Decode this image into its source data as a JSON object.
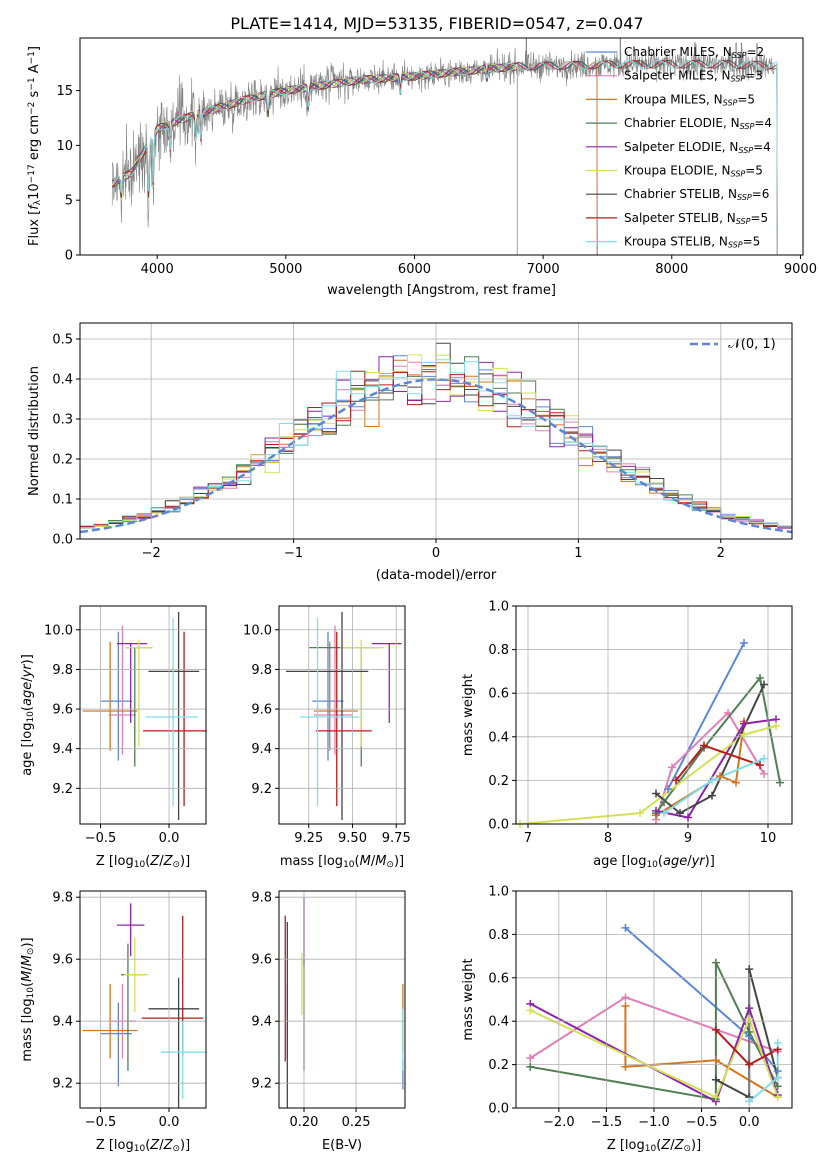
{
  "figure_title": "PLATE=1414, MJD=53135, FIBERID=0547, z=0.047",
  "colors": {
    "Chabrier MILES": "#5b86d6",
    "Salpeter MILES": "#e27db8",
    "Kroupa MILES": "#d6761c",
    "Chabrier ELODIE": "#4f7f52",
    "Salpeter ELODIE": "#8e24aa",
    "Kroupa ELODIE": "#d4e157",
    "Chabrier STELIB": "#444444",
    "Salpeter STELIB": "#b71c1c",
    "Kroupa STELIB": "#80deea",
    "data": "#808080",
    "normal": "#5b86d6"
  },
  "chart_data": [
    {
      "id": "spectrum",
      "type": "line",
      "xlabel": "wavelength [Angstrom, rest frame]",
      "ylabel": "Flux [f_λ10^-17 erg cm^-2 s^-1 A^-1]",
      "xlim": [
        3400,
        9020
      ],
      "ylim": [
        0,
        19.8
      ],
      "xticks": [
        4000,
        5000,
        6000,
        7000,
        8000,
        9000
      ],
      "yticks": [
        0,
        5,
        10,
        15
      ],
      "grid": false,
      "legend_position": "top-right",
      "legend": [
        {
          "name": "Chabrier MILES",
          "nssp": "2"
        },
        {
          "name": "Salpeter MILES",
          "nssp": "3"
        },
        {
          "name": "Kroupa MILES",
          "nssp": "5"
        },
        {
          "name": "Chabrier ELODIE",
          "nssp": "4"
        },
        {
          "name": "Salpeter ELODIE",
          "nssp": "4"
        },
        {
          "name": "Kroupa ELODIE",
          "nssp": "5"
        },
        {
          "name": "Chabrier STELIB",
          "nssp": "6"
        },
        {
          "name": "Salpeter STELIB",
          "nssp": "5"
        },
        {
          "name": "Kroupa STELIB",
          "nssp": "5"
        }
      ],
      "continuum": {
        "x": [
          3650,
          3800,
          3900,
          4000,
          4100,
          4300,
          4500,
          4700,
          5000,
          5300,
          5600,
          6000,
          6400,
          6800,
          7200,
          7600,
          8000,
          8400,
          8800
        ],
        "y": [
          6.5,
          7.5,
          9.5,
          11.5,
          12.0,
          12.8,
          13.5,
          14.2,
          15.0,
          15.5,
          16.0,
          16.3,
          16.8,
          17.2,
          17.3,
          17.4,
          17.4,
          17.4,
          17.3
        ]
      },
      "model_extent": {
        "MILES": [
          3650,
          7420
        ],
        "ELODIE": [
          3650,
          6800
        ],
        "STELIB": [
          3650,
          8820
        ]
      },
      "absorption_lines": [
        {
          "x": 3720,
          "depth": 2.0
        },
        {
          "x": 3934,
          "depth": 5.5
        },
        {
          "x": 3968,
          "depth": 5.0
        },
        {
          "x": 4101,
          "depth": 2.5
        },
        {
          "x": 4300,
          "depth": 2.5
        },
        {
          "x": 4340,
          "depth": 2.5
        },
        {
          "x": 4861,
          "depth": 2.0
        },
        {
          "x": 5175,
          "depth": 2.0
        },
        {
          "x": 5890,
          "depth": 1.5
        },
        {
          "x": 6563,
          "depth": 1.0
        }
      ],
      "telluric_regions": [
        {
          "x": 6870,
          "height": 22
        },
        {
          "x": 7600,
          "height": 3
        },
        {
          "x": 8180,
          "height": 2
        },
        {
          "x": 8500,
          "height": 2
        },
        {
          "x": 8542,
          "height": 2
        },
        {
          "x": 8662,
          "height": 2
        }
      ]
    },
    {
      "id": "residuals",
      "type": "step-histogram",
      "xlabel": "(data-model)/error",
      "ylabel": "Normed distribution",
      "xlim": [
        -2.5,
        2.5
      ],
      "ylim": [
        0,
        0.54
      ],
      "xticks": [
        -2,
        -1,
        0,
        1,
        2
      ],
      "yticks": [
        0.0,
        0.1,
        0.2,
        0.3,
        0.4,
        0.5
      ],
      "grid": true,
      "legend_position": "top-right",
      "normal_label": "N(0, 1)",
      "bin_width": 0.1,
      "bin_start": -2.5
    },
    {
      "id": "age_vs_Z",
      "type": "errorbar",
      "xlabel": "Z [log10(Z/Z_sun)]",
      "ylabel": "age  [log10(age/yr)]",
      "xlim": [
        -0.65,
        0.27
      ],
      "ylim": [
        9.02,
        10.12
      ],
      "xticks": [
        -0.5,
        0.0
      ],
      "yticks": [
        9.2,
        9.4,
        9.6,
        9.8,
        10.0
      ],
      "grid": true,
      "points": [
        {
          "model": "Chabrier MILES",
          "x": -0.37,
          "y": 9.64,
          "xerr": [
            0.13,
            0.1
          ],
          "yerr": [
            0.3,
            0.35
          ]
        },
        {
          "model": "Salpeter MILES",
          "x": -0.34,
          "y": 9.57,
          "xerr": [
            0.1,
            0.1
          ],
          "yerr": [
            0.2,
            0.45
          ]
        },
        {
          "model": "Kroupa MILES",
          "x": -0.43,
          "y": 9.59,
          "xerr": [
            0.2,
            0.2
          ],
          "yerr": [
            0.2,
            0.35
          ]
        },
        {
          "model": "Chabrier ELODIE",
          "x": -0.25,
          "y": 9.91,
          "xerr": [
            0.06,
            0.12
          ],
          "yerr": [
            0.6,
            0.0
          ]
        },
        {
          "model": "Salpeter ELODIE",
          "x": -0.28,
          "y": 9.93,
          "xerr": [
            0.1,
            0.12
          ],
          "yerr": [
            0.4,
            0.0
          ]
        },
        {
          "model": "Kroupa ELODIE",
          "x": -0.22,
          "y": 9.91,
          "xerr": [
            0.1,
            0.1
          ],
          "yerr": [
            0.5,
            0.04
          ]
        },
        {
          "model": "Chabrier STELIB",
          "x": 0.07,
          "y": 9.79,
          "xerr": [
            0.22,
            0.15
          ],
          "yerr": [
            0.75,
            0.3
          ]
        },
        {
          "model": "Salpeter STELIB",
          "x": 0.11,
          "y": 9.49,
          "xerr": [
            0.3,
            0.2
          ],
          "yerr": [
            0.38,
            0.5
          ]
        },
        {
          "model": "Kroupa STELIB",
          "x": 0.03,
          "y": 9.56,
          "xerr": [
            0.2,
            0.18
          ],
          "yerr": [
            0.45,
            0.5
          ]
        }
      ]
    },
    {
      "id": "age_vs_mass",
      "type": "errorbar",
      "xlabel": "mass [log10(M/M_sun)]",
      "ylabel": "",
      "xlim": [
        9.08,
        9.8
      ],
      "ylim": [
        9.02,
        10.12
      ],
      "xticks": [
        9.25,
        9.5,
        9.75
      ],
      "yticks": [
        9.2,
        9.4,
        9.6,
        9.8,
        10.0
      ],
      "grid": true,
      "points": [
        {
          "model": "Chabrier MILES",
          "x": 9.36,
          "y": 9.64,
          "xerr": [
            0.09,
            0.09
          ],
          "yerr": [
            0.3,
            0.35
          ]
        },
        {
          "model": "Salpeter MILES",
          "x": 9.4,
          "y": 9.57,
          "xerr": [
            0.12,
            0.1
          ],
          "yerr": [
            0.2,
            0.45
          ]
        },
        {
          "model": "Kroupa MILES",
          "x": 9.37,
          "y": 9.59,
          "xerr": [
            0.09,
            0.16
          ],
          "yerr": [
            0.2,
            0.35
          ]
        },
        {
          "model": "Chabrier ELODIE",
          "x": 9.55,
          "y": 9.91,
          "xerr": [
            0.3,
            0.1
          ],
          "yerr": [
            0.6,
            0.0
          ]
        },
        {
          "model": "Salpeter ELODIE",
          "x": 9.71,
          "y": 9.93,
          "xerr": [
            0.1,
            0.07
          ],
          "yerr": [
            0.4,
            0.0
          ]
        },
        {
          "model": "Kroupa ELODIE",
          "x": 9.55,
          "y": 9.91,
          "xerr": [
            0.12,
            0.13
          ],
          "yerr": [
            0.5,
            0.04
          ]
        },
        {
          "model": "Chabrier STELIB",
          "x": 9.44,
          "y": 9.79,
          "xerr": [
            0.32,
            0.15
          ],
          "yerr": [
            0.75,
            0.3
          ]
        },
        {
          "model": "Salpeter STELIB",
          "x": 9.41,
          "y": 9.49,
          "xerr": [
            0.12,
            0.2
          ],
          "yerr": [
            0.38,
            0.5
          ]
        },
        {
          "model": "Kroupa STELIB",
          "x": 9.3,
          "y": 9.56,
          "xerr": [
            0.1,
            0.24
          ],
          "yerr": [
            0.45,
            0.5
          ]
        }
      ]
    },
    {
      "id": "massweight_vs_age",
      "type": "line",
      "xlabel": "age  [log10(age/yr)]",
      "ylabel": "mass weight",
      "xlim": [
        6.85,
        10.3
      ],
      "ylim": [
        0,
        1.0
      ],
      "xticks": [
        7,
        8,
        9,
        10
      ],
      "yticks": [
        0.0,
        0.2,
        0.4,
        0.6,
        0.8,
        1.0
      ],
      "grid": true,
      "series": [
        {
          "model": "Chabrier MILES",
          "x": [
            8.75,
            9.7
          ],
          "y": [
            0.16,
            0.83
          ]
        },
        {
          "model": "Salpeter MILES",
          "x": [
            8.6,
            8.8,
            9.5,
            9.95
          ],
          "y": [
            0.02,
            0.26,
            0.51,
            0.23
          ]
        },
        {
          "model": "Kroupa MILES",
          "x": [
            8.6,
            9.4,
            9.6,
            9.7
          ],
          "y": [
            0.04,
            0.22,
            0.19,
            0.47
          ]
        },
        {
          "model": "Chabrier ELODIE",
          "x": [
            8.6,
            8.7,
            9.2,
            9.9,
            10.15
          ],
          "y": [
            0.05,
            0.1,
            0.35,
            0.67,
            0.19
          ]
        },
        {
          "model": "Salpeter ELODIE",
          "x": [
            8.6,
            9.0,
            9.7,
            10.1
          ],
          "y": [
            0.06,
            0.03,
            0.46,
            0.48
          ]
        },
        {
          "model": "Kroupa ELODIE",
          "x": [
            6.9,
            8.4,
            9.7,
            10.1
          ],
          "y": [
            0.0,
            0.05,
            0.41,
            0.45
          ]
        },
        {
          "model": "Chabrier STELIB",
          "x": [
            8.6,
            8.9,
            9.3,
            9.95
          ],
          "y": [
            0.14,
            0.05,
            0.13,
            0.64
          ]
        },
        {
          "model": "Salpeter STELIB",
          "x": [
            8.85,
            9.2,
            9.9
          ],
          "y": [
            0.2,
            0.36,
            0.27
          ]
        },
        {
          "model": "Kroupa STELIB",
          "x": [
            8.7,
            9.3,
            9.95
          ],
          "y": [
            0.05,
            0.2,
            0.3
          ]
        }
      ]
    },
    {
      "id": "mass_vs_Z",
      "type": "errorbar",
      "xlabel": "Z [log10(Z/Z_sun)]",
      "ylabel": "mass [log10(M/M_sun)]",
      "xlim": [
        -0.65,
        0.27
      ],
      "ylim": [
        9.12,
        9.82
      ],
      "xticks": [
        -0.5,
        0.0
      ],
      "yticks": [
        9.2,
        9.4,
        9.6,
        9.8
      ],
      "grid": true,
      "points": [
        {
          "model": "Chabrier MILES",
          "x": -0.37,
          "y": 9.36,
          "xerr": [
            0.13,
            0.1
          ],
          "yerr": [
            0.17,
            0.1
          ]
        },
        {
          "model": "Salpeter MILES",
          "x": -0.34,
          "y": 9.4,
          "xerr": [
            0.1,
            0.1
          ],
          "yerr": [
            0.12,
            0.12
          ]
        },
        {
          "model": "Kroupa MILES",
          "x": -0.43,
          "y": 9.37,
          "xerr": [
            0.2,
            0.2
          ],
          "yerr": [
            0.09,
            0.15
          ]
        },
        {
          "model": "Chabrier ELODIE",
          "x": -0.3,
          "y": 9.55,
          "xerr": [
            0.05,
            0.12
          ],
          "yerr": [
            0.31,
            0.1
          ]
        },
        {
          "model": "Salpeter ELODIE",
          "x": -0.28,
          "y": 9.71,
          "xerr": [
            0.1,
            0.1
          ],
          "yerr": [
            0.1,
            0.07
          ]
        },
        {
          "model": "Kroupa ELODIE",
          "x": -0.25,
          "y": 9.55,
          "xerr": [
            0.08,
            0.1
          ],
          "yerr": [
            0.12,
            0.12
          ]
        },
        {
          "model": "Chabrier STELIB",
          "x": 0.07,
          "y": 9.44,
          "xerr": [
            0.22,
            0.15
          ],
          "yerr": [
            0.32,
            0.1
          ]
        },
        {
          "model": "Salpeter STELIB",
          "x": 0.1,
          "y": 9.41,
          "xerr": [
            0.3,
            0.15
          ],
          "yerr": [
            0.12,
            0.33
          ]
        },
        {
          "model": "Kroupa STELIB",
          "x": 0.1,
          "y": 9.3,
          "xerr": [
            0.16,
            0.18
          ],
          "yerr": [
            0.15,
            0.1
          ]
        }
      ]
    },
    {
      "id": "mass_vs_EBV",
      "type": "errorbar",
      "xlabel": "E(B-V)",
      "ylabel": "",
      "xlim": [
        0.176,
        0.297
      ],
      "ylim": [
        9.12,
        9.82
      ],
      "xticks": [
        0.2,
        0.25
      ],
      "yticks": [
        9.2,
        9.4,
        9.6,
        9.8
      ],
      "grid": true,
      "points": [
        {
          "model": "Chabrier MILES",
          "x": 0.295,
          "y": 9.23,
          "xerr": [
            0,
            0
          ],
          "yerr": [
            0.05,
            0.05
          ]
        },
        {
          "model": "Salpeter MILES",
          "x": 0.184,
          "y": 9.4,
          "xerr": [
            0,
            0
          ],
          "yerr": [
            0.12,
            0.12
          ]
        },
        {
          "model": "Kroupa MILES",
          "x": 0.295,
          "y": 9.4,
          "xerr": [
            0,
            0
          ],
          "yerr": [
            0.1,
            0.12
          ]
        },
        {
          "model": "Chabrier ELODIE",
          "x": 0.2,
          "y": 9.5,
          "xerr": [
            0,
            0
          ],
          "yerr": [
            0.26,
            0.1
          ]
        },
        {
          "model": "Salpeter ELODIE",
          "x": 0.2,
          "y": 9.65,
          "xerr": [
            0,
            0
          ],
          "yerr": [
            0.07,
            0.15
          ]
        },
        {
          "model": "Kroupa ELODIE",
          "x": 0.198,
          "y": 9.5,
          "xerr": [
            0,
            0
          ],
          "yerr": [
            0.08,
            0.12
          ]
        },
        {
          "model": "Chabrier STELIB",
          "x": 0.184,
          "y": 9.4,
          "xerr": [
            0,
            0
          ],
          "yerr": [
            0.29,
            0.32
          ]
        },
        {
          "model": "Salpeter STELIB",
          "x": 0.182,
          "y": 9.52,
          "xerr": [
            0,
            0
          ],
          "yerr": [
            0.25,
            0.22
          ]
        },
        {
          "model": "Kroupa STELIB",
          "x": 0.295,
          "y": 9.34,
          "xerr": [
            0,
            0
          ],
          "yerr": [
            0.1,
            0.1
          ]
        }
      ]
    },
    {
      "id": "massweight_vs_Z",
      "type": "line",
      "xlabel": "Z [log10(Z/Z_sun)]",
      "ylabel": "mass weight",
      "xlim": [
        -2.45,
        0.45
      ],
      "ylim": [
        0,
        1.0
      ],
      "xticks": [
        -2.0,
        -1.5,
        -1.0,
        -0.5,
        0.0
      ],
      "yticks": [
        0.0,
        0.2,
        0.4,
        0.6,
        0.8,
        1.0
      ],
      "grid": true,
      "series": [
        {
          "model": "Chabrier MILES",
          "x": [
            -1.3,
            0.0,
            0.3
          ],
          "y": [
            0.83,
            0.33,
            0.17
          ]
        },
        {
          "model": "Salpeter MILES",
          "x": [
            -2.3,
            -1.3,
            0.3
          ],
          "y": [
            0.23,
            0.51,
            0.26
          ]
        },
        {
          "model": "Kroupa MILES",
          "x": [
            -1.3,
            -1.3,
            -0.35,
            0.3
          ],
          "y": [
            0.47,
            0.19,
            0.22,
            0.05
          ]
        },
        {
          "model": "Chabrier ELODIE",
          "x": [
            -2.3,
            -0.35,
            -0.35,
            0.0,
            0.3
          ],
          "y": [
            0.19,
            0.04,
            0.67,
            0.35,
            0.1
          ]
        },
        {
          "model": "Salpeter ELODIE",
          "x": [
            -2.3,
            -0.35,
            0.0,
            0.3
          ],
          "y": [
            0.48,
            0.03,
            0.46,
            0.06
          ]
        },
        {
          "model": "Kroupa ELODIE",
          "x": [
            -2.3,
            -0.35,
            0.0,
            0.3
          ],
          "y": [
            0.45,
            0.05,
            0.41,
            0.05
          ]
        },
        {
          "model": "Chabrier STELIB",
          "x": [
            -0.35,
            0.0,
            0.0,
            0.3
          ],
          "y": [
            0.13,
            0.05,
            0.64,
            0.14
          ]
        },
        {
          "model": "Salpeter STELIB",
          "x": [
            -0.35,
            0.0,
            0.3
          ],
          "y": [
            0.36,
            0.2,
            0.27
          ]
        },
        {
          "model": "Kroupa STELIB",
          "x": [
            0.0,
            0.3,
            0.3
          ],
          "y": [
            0.03,
            0.14,
            0.3
          ]
        }
      ]
    }
  ]
}
